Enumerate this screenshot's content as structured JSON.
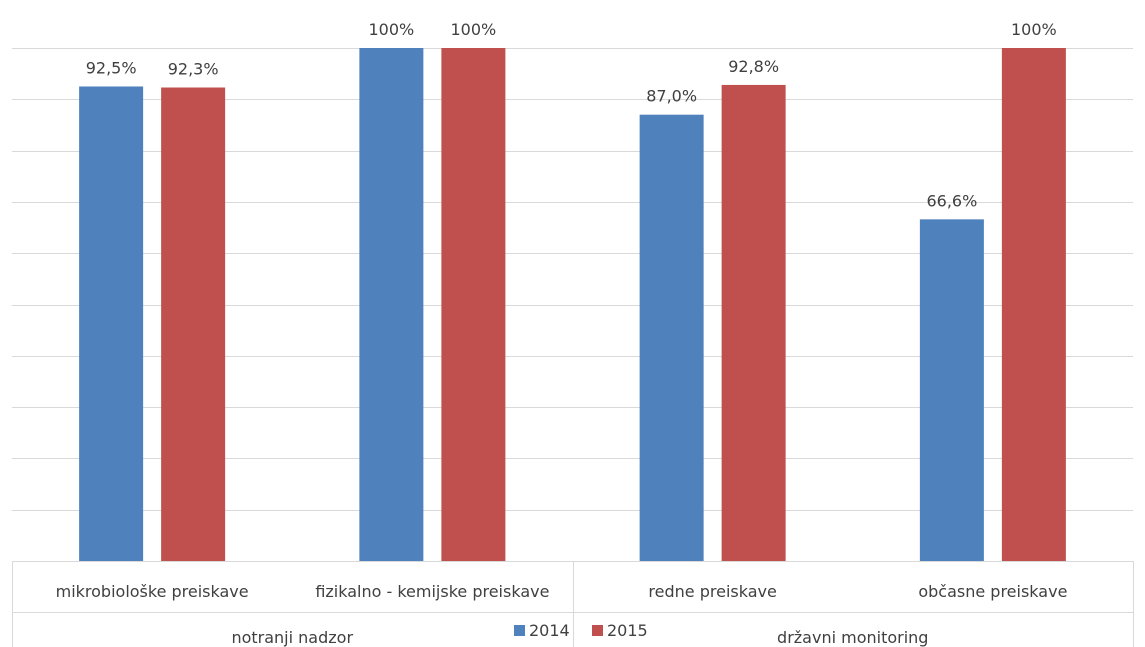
{
  "chart_data": {
    "type": "bar",
    "title": "",
    "xlabel": "",
    "ylabel": "",
    "ylim": [
      0,
      100
    ],
    "gridlines": true,
    "groups": [
      {
        "label": "notranji nadzor",
        "categories": [
          "mikrobiološke preiskave",
          "fizikalno - kemijske preiskave"
        ]
      },
      {
        "label": "državni monitoring",
        "categories": [
          "redne preiskave",
          "občasne preiskave"
        ]
      }
    ],
    "categories": [
      "mikrobiološke preiskave",
      "fizikalno - kemijske preiskave",
      "redne preiskave",
      "občasne preiskave"
    ],
    "series": [
      {
        "name": "2014",
        "color": "#4f81bd",
        "values": [
          92.5,
          100,
          87.0,
          66.6
        ],
        "labels": [
          "92,5%",
          "100%",
          "87,0%",
          "66,6%"
        ]
      },
      {
        "name": "2015",
        "color": "#c0504d",
        "values": [
          92.3,
          100,
          92.8,
          100
        ],
        "labels": [
          "92,3%",
          "100%",
          "92,8%",
          "100%"
        ]
      }
    ],
    "legend_position": "bottom"
  }
}
